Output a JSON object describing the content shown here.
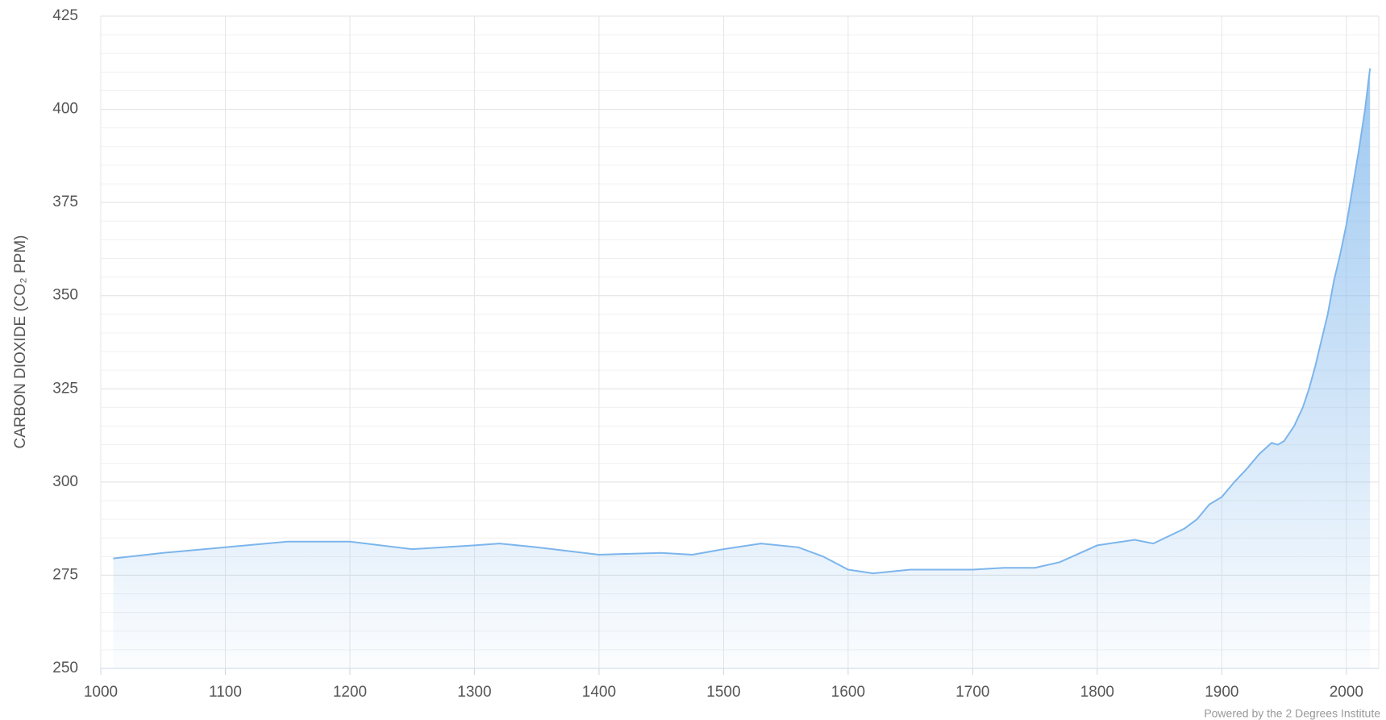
{
  "chart_data": {
    "type": "area",
    "y_label": "CARBON DIOXIDE (CO₂ PPM)",
    "credit": "Powered by the 2 Degrees Institute",
    "color": "#7cb5ec",
    "grid": true,
    "xlim": [
      1000,
      2026
    ],
    "xticks": [
      1000,
      1100,
      1200,
      1300,
      1400,
      1500,
      1600,
      1700,
      1800,
      1900,
      2000
    ],
    "ylim": [
      250,
      425
    ],
    "yticks": [
      250,
      275,
      300,
      325,
      350,
      375,
      400,
      425
    ],
    "x": [
      1010,
      1050,
      1100,
      1150,
      1200,
      1250,
      1300,
      1320,
      1350,
      1400,
      1450,
      1475,
      1500,
      1530,
      1560,
      1580,
      1600,
      1620,
      1650,
      1700,
      1725,
      1750,
      1770,
      1800,
      1830,
      1845,
      1870,
      1880,
      1890,
      1900,
      1910,
      1920,
      1930,
      1940,
      1945,
      1950,
      1958,
      1965,
      1970,
      1975,
      1980,
      1985,
      1990,
      1995,
      2000,
      2005,
      2010,
      2015,
      2019
    ],
    "values": [
      279.5,
      281,
      282.5,
      284,
      284,
      282,
      283,
      283.5,
      282.5,
      280.5,
      281,
      280.5,
      282,
      283.5,
      282.5,
      280,
      276.5,
      275.5,
      276.5,
      276.5,
      277,
      277,
      278.5,
      283,
      284.5,
      283.5,
      287.5,
      290,
      294,
      296,
      300,
      303.5,
      307.5,
      310.5,
      310,
      311,
      315,
      320,
      325,
      331,
      338,
      345,
      354,
      361,
      369,
      379,
      389,
      400,
      411
    ]
  }
}
